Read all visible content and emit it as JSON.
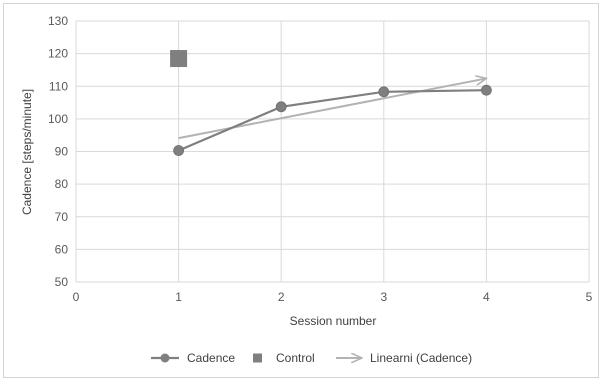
{
  "chart_data": {
    "type": "line",
    "xlabel": "Session number",
    "ylabel": "Cadence [steps/minute]",
    "xlim": [
      0,
      5
    ],
    "ylim": [
      50,
      130
    ],
    "x_ticks": [
      0,
      1,
      2,
      3,
      4,
      5
    ],
    "y_ticks": [
      50,
      60,
      70,
      80,
      90,
      100,
      110,
      120,
      130
    ],
    "grid": true,
    "legend_position": "bottom",
    "series": [
      {
        "name": "Cadence",
        "style": "line-circle-markers",
        "color": "#7f7f7f",
        "points": [
          {
            "x": 1,
            "y": 90.3
          },
          {
            "x": 2,
            "y": 103.7
          },
          {
            "x": 3,
            "y": 108.3
          },
          {
            "x": 4,
            "y": 108.8
          }
        ]
      },
      {
        "name": "Control",
        "style": "square-marker",
        "color": "#7f7f7f",
        "points": [
          {
            "x": 1,
            "y": 118.5
          }
        ]
      },
      {
        "name": "Linearni (Cadence)",
        "style": "trendline-arrow",
        "color": "#b3b3b3",
        "points": [
          {
            "x": 1,
            "y": 94.1
          },
          {
            "x": 4,
            "y": 112.4
          }
        ]
      }
    ],
    "legend": [
      {
        "label": "Cadence"
      },
      {
        "label": "Control"
      },
      {
        "label": "Linearni (Cadence)"
      }
    ]
  }
}
